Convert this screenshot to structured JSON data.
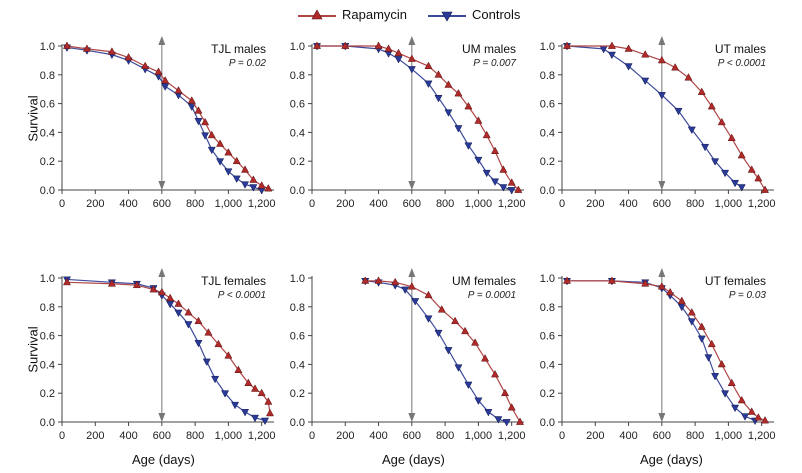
{
  "legend": {
    "rapamycin_label": "Rapamycin",
    "controls_label": "Controls"
  },
  "colors": {
    "rapamycin": "#b02a2a",
    "rapamycin_line": "#b04545",
    "controls": "#2a3a98",
    "controls_line": "#3c4a9a",
    "axis": "#444444",
    "arrow": "#777777"
  },
  "labels": {
    "y_top": "Survival",
    "y_bottom": "Survival",
    "x_left": "Age (days)",
    "x_mid": "Age (days)",
    "x_right": "Age (days)"
  },
  "chart_data": [
    {
      "type": "line",
      "title": "TJL males",
      "p_label": "P = 0.02",
      "xlabel": "Age (days)",
      "ylabel": "Survival",
      "xlim": [
        0,
        1250
      ],
      "ylim": [
        0,
        1.0
      ],
      "xticks": [
        0,
        200,
        400,
        600,
        800,
        1000,
        1200
      ],
      "xtick_labels": [
        "0",
        "200",
        "400",
        "600",
        "800",
        "1,000",
        "1,200"
      ],
      "yticks": [
        0,
        0.2,
        0.4,
        0.6,
        0.8,
        1.0
      ],
      "ytick_labels": [
        "0.0",
        "0.2",
        "0.4",
        "0.6",
        "0.8",
        "1.0"
      ],
      "marker_x": 600,
      "series": [
        {
          "name": "Rapamycin",
          "x": [
            30,
            150,
            300,
            400,
            500,
            580,
            620,
            700,
            780,
            820,
            860,
            900,
            950,
            1000,
            1050,
            1100,
            1150,
            1200,
            1240
          ],
          "y": [
            1.0,
            0.98,
            0.96,
            0.92,
            0.86,
            0.82,
            0.76,
            0.69,
            0.62,
            0.55,
            0.47,
            0.38,
            0.32,
            0.26,
            0.2,
            0.14,
            0.07,
            0.03,
            0.01
          ]
        },
        {
          "name": "Controls",
          "x": [
            30,
            150,
            300,
            400,
            500,
            580,
            620,
            700,
            780,
            820,
            860,
            900,
            950,
            1000,
            1050,
            1100,
            1150,
            1200
          ],
          "y": [
            0.99,
            0.97,
            0.94,
            0.9,
            0.84,
            0.79,
            0.72,
            0.66,
            0.58,
            0.48,
            0.38,
            0.28,
            0.2,
            0.13,
            0.08,
            0.04,
            0.02,
            0.0
          ]
        }
      ]
    },
    {
      "type": "line",
      "title": "UM males",
      "p_label": "P = 0.007",
      "xlabel": "Age (days)",
      "ylabel": "Survival",
      "xlim": [
        0,
        1250
      ],
      "ylim": [
        0,
        1.0
      ],
      "xticks": [
        0,
        200,
        400,
        600,
        800,
        1000,
        1200
      ],
      "xtick_labels": [
        "0",
        "200",
        "400",
        "600",
        "800",
        "1,000",
        "1,200"
      ],
      "yticks": [
        0,
        0.2,
        0.4,
        0.6,
        0.8,
        1.0
      ],
      "ytick_labels": [
        "0.0",
        "0.2",
        "0.4",
        "0.6",
        "0.8",
        "1.0"
      ],
      "marker_x": 600,
      "series": [
        {
          "name": "Rapamycin",
          "x": [
            30,
            200,
            400,
            460,
            520,
            600,
            700,
            760,
            820,
            880,
            940,
            1000,
            1050,
            1100,
            1150,
            1200,
            1240
          ],
          "y": [
            1.0,
            1.0,
            1.0,
            0.98,
            0.95,
            0.91,
            0.86,
            0.8,
            0.73,
            0.67,
            0.58,
            0.48,
            0.38,
            0.27,
            0.14,
            0.05,
            0.0
          ]
        },
        {
          "name": "Controls",
          "x": [
            30,
            200,
            400,
            460,
            520,
            600,
            700,
            760,
            820,
            880,
            940,
            1000,
            1050,
            1100,
            1150,
            1200
          ],
          "y": [
            1.0,
            1.0,
            0.98,
            0.95,
            0.91,
            0.84,
            0.74,
            0.64,
            0.54,
            0.43,
            0.31,
            0.21,
            0.12,
            0.06,
            0.02,
            0.0
          ]
        }
      ]
    },
    {
      "type": "line",
      "title": "UT males",
      "p_label": "P < 0.0001",
      "xlabel": "Age (days)",
      "ylabel": "Survival",
      "xlim": [
        0,
        1250
      ],
      "ylim": [
        0,
        1.0
      ],
      "xticks": [
        0,
        200,
        400,
        600,
        800,
        1000,
        1200
      ],
      "xtick_labels": [
        "0",
        "200",
        "400",
        "600",
        "800",
        "1,000",
        "1,200"
      ],
      "yticks": [
        0,
        0.2,
        0.4,
        0.6,
        0.8,
        1.0
      ],
      "ytick_labels": [
        "0.0",
        "0.2",
        "0.4",
        "0.6",
        "0.8",
        "1.0"
      ],
      "marker_x": 600,
      "series": [
        {
          "name": "Rapamycin",
          "x": [
            30,
            300,
            400,
            500,
            600,
            680,
            760,
            840,
            900,
            960,
            1020,
            1080,
            1140,
            1180,
            1220
          ],
          "y": [
            1.0,
            1.0,
            0.98,
            0.94,
            0.9,
            0.85,
            0.78,
            0.68,
            0.58,
            0.47,
            0.36,
            0.24,
            0.14,
            0.08,
            0.0
          ]
        },
        {
          "name": "Controls",
          "x": [
            30,
            250,
            300,
            400,
            500,
            600,
            700,
            780,
            860,
            920,
            980,
            1040,
            1080
          ],
          "y": [
            1.0,
            0.98,
            0.94,
            0.86,
            0.76,
            0.66,
            0.55,
            0.42,
            0.3,
            0.2,
            0.12,
            0.05,
            0.02
          ]
        }
      ]
    },
    {
      "type": "line",
      "title": "TJL females",
      "p_label": "P < 0.0001",
      "xlabel": "Age (days)",
      "ylabel": "Survival",
      "xlim": [
        0,
        1250
      ],
      "ylim": [
        0,
        1.0
      ],
      "xticks": [
        0,
        200,
        400,
        600,
        800,
        1000,
        1200
      ],
      "xtick_labels": [
        "0",
        "200",
        "400",
        "600",
        "800",
        "1,000",
        "1,200"
      ],
      "yticks": [
        0,
        0.2,
        0.4,
        0.6,
        0.8,
        1.0
      ],
      "ytick_labels": [
        "0.0",
        "0.2",
        "0.4",
        "0.6",
        "0.8",
        "1.0"
      ],
      "marker_x": 600,
      "series": [
        {
          "name": "Rapamycin",
          "x": [
            30,
            300,
            450,
            550,
            600,
            650,
            700,
            760,
            820,
            880,
            940,
            1000,
            1060,
            1120,
            1160,
            1200,
            1240,
            1250
          ],
          "y": [
            0.97,
            0.96,
            0.95,
            0.92,
            0.9,
            0.86,
            0.82,
            0.76,
            0.7,
            0.62,
            0.54,
            0.46,
            0.36,
            0.27,
            0.23,
            0.2,
            0.14,
            0.06
          ]
        },
        {
          "name": "Controls",
          "x": [
            30,
            300,
            450,
            550,
            600,
            650,
            700,
            760,
            820,
            870,
            920,
            980,
            1040,
            1100,
            1160,
            1220
          ],
          "y": [
            0.99,
            0.97,
            0.96,
            0.93,
            0.88,
            0.82,
            0.76,
            0.68,
            0.55,
            0.42,
            0.3,
            0.2,
            0.12,
            0.07,
            0.03,
            0.01
          ]
        }
      ]
    },
    {
      "type": "line",
      "title": "UM females",
      "p_label": "P = 0.0001",
      "xlabel": "Age (days)",
      "ylabel": "Survival",
      "xlim": [
        0,
        1250
      ],
      "ylim": [
        0,
        1.0
      ],
      "xticks": [
        0,
        200,
        400,
        600,
        800,
        1000,
        1200
      ],
      "xtick_labels": [
        "0",
        "200",
        "400",
        "600",
        "800",
        "1,000",
        "1,200"
      ],
      "yticks": [
        0,
        0.2,
        0.4,
        0.6,
        0.8,
        1.0
      ],
      "ytick_labels": [
        "0.0",
        "0.2",
        "0.4",
        "0.6",
        "0.8",
        "1.0"
      ],
      "marker_x": 600,
      "series": [
        {
          "name": "Rapamycin",
          "x": [
            320,
            400,
            500,
            600,
            700,
            780,
            860,
            920,
            980,
            1040,
            1100,
            1160,
            1200,
            1250
          ],
          "y": [
            0.98,
            0.98,
            0.97,
            0.94,
            0.88,
            0.78,
            0.7,
            0.63,
            0.55,
            0.44,
            0.33,
            0.2,
            0.1,
            0.0
          ]
        },
        {
          "name": "Controls",
          "x": [
            320,
            400,
            500,
            560,
            620,
            700,
            760,
            820,
            880,
            940,
            1000,
            1060,
            1120,
            1170
          ],
          "y": [
            0.98,
            0.97,
            0.95,
            0.92,
            0.84,
            0.72,
            0.62,
            0.5,
            0.38,
            0.26,
            0.15,
            0.07,
            0.02,
            0.0
          ]
        }
      ]
    },
    {
      "type": "line",
      "title": "UT females",
      "p_label": "P = 0.03",
      "xlabel": "Age (days)",
      "ylabel": "Survival",
      "xlim": [
        0,
        1250
      ],
      "ylim": [
        0,
        1.0
      ],
      "xticks": [
        0,
        200,
        400,
        600,
        800,
        1000,
        1200
      ],
      "xtick_labels": [
        "0",
        "200",
        "400",
        "600",
        "800",
        "1,000",
        "1,200"
      ],
      "yticks": [
        0,
        0.2,
        0.4,
        0.6,
        0.8,
        1.0
      ],
      "ytick_labels": [
        "0.0",
        "0.2",
        "0.4",
        "0.6",
        "0.8",
        "1.0"
      ],
      "marker_x": 600,
      "series": [
        {
          "name": "Rapamycin",
          "x": [
            30,
            300,
            500,
            600,
            650,
            720,
            780,
            840,
            900,
            960,
            1020,
            1080,
            1140,
            1180,
            1220
          ],
          "y": [
            0.98,
            0.98,
            0.96,
            0.94,
            0.9,
            0.84,
            0.76,
            0.66,
            0.54,
            0.4,
            0.27,
            0.15,
            0.07,
            0.03,
            0.01
          ]
        },
        {
          "name": "Controls",
          "x": [
            30,
            300,
            500,
            600,
            650,
            720,
            780,
            840,
            880,
            920,
            980,
            1040,
            1100,
            1160
          ],
          "y": [
            0.98,
            0.98,
            0.97,
            0.93,
            0.88,
            0.8,
            0.7,
            0.58,
            0.45,
            0.32,
            0.2,
            0.1,
            0.04,
            0.01
          ]
        }
      ]
    }
  ]
}
